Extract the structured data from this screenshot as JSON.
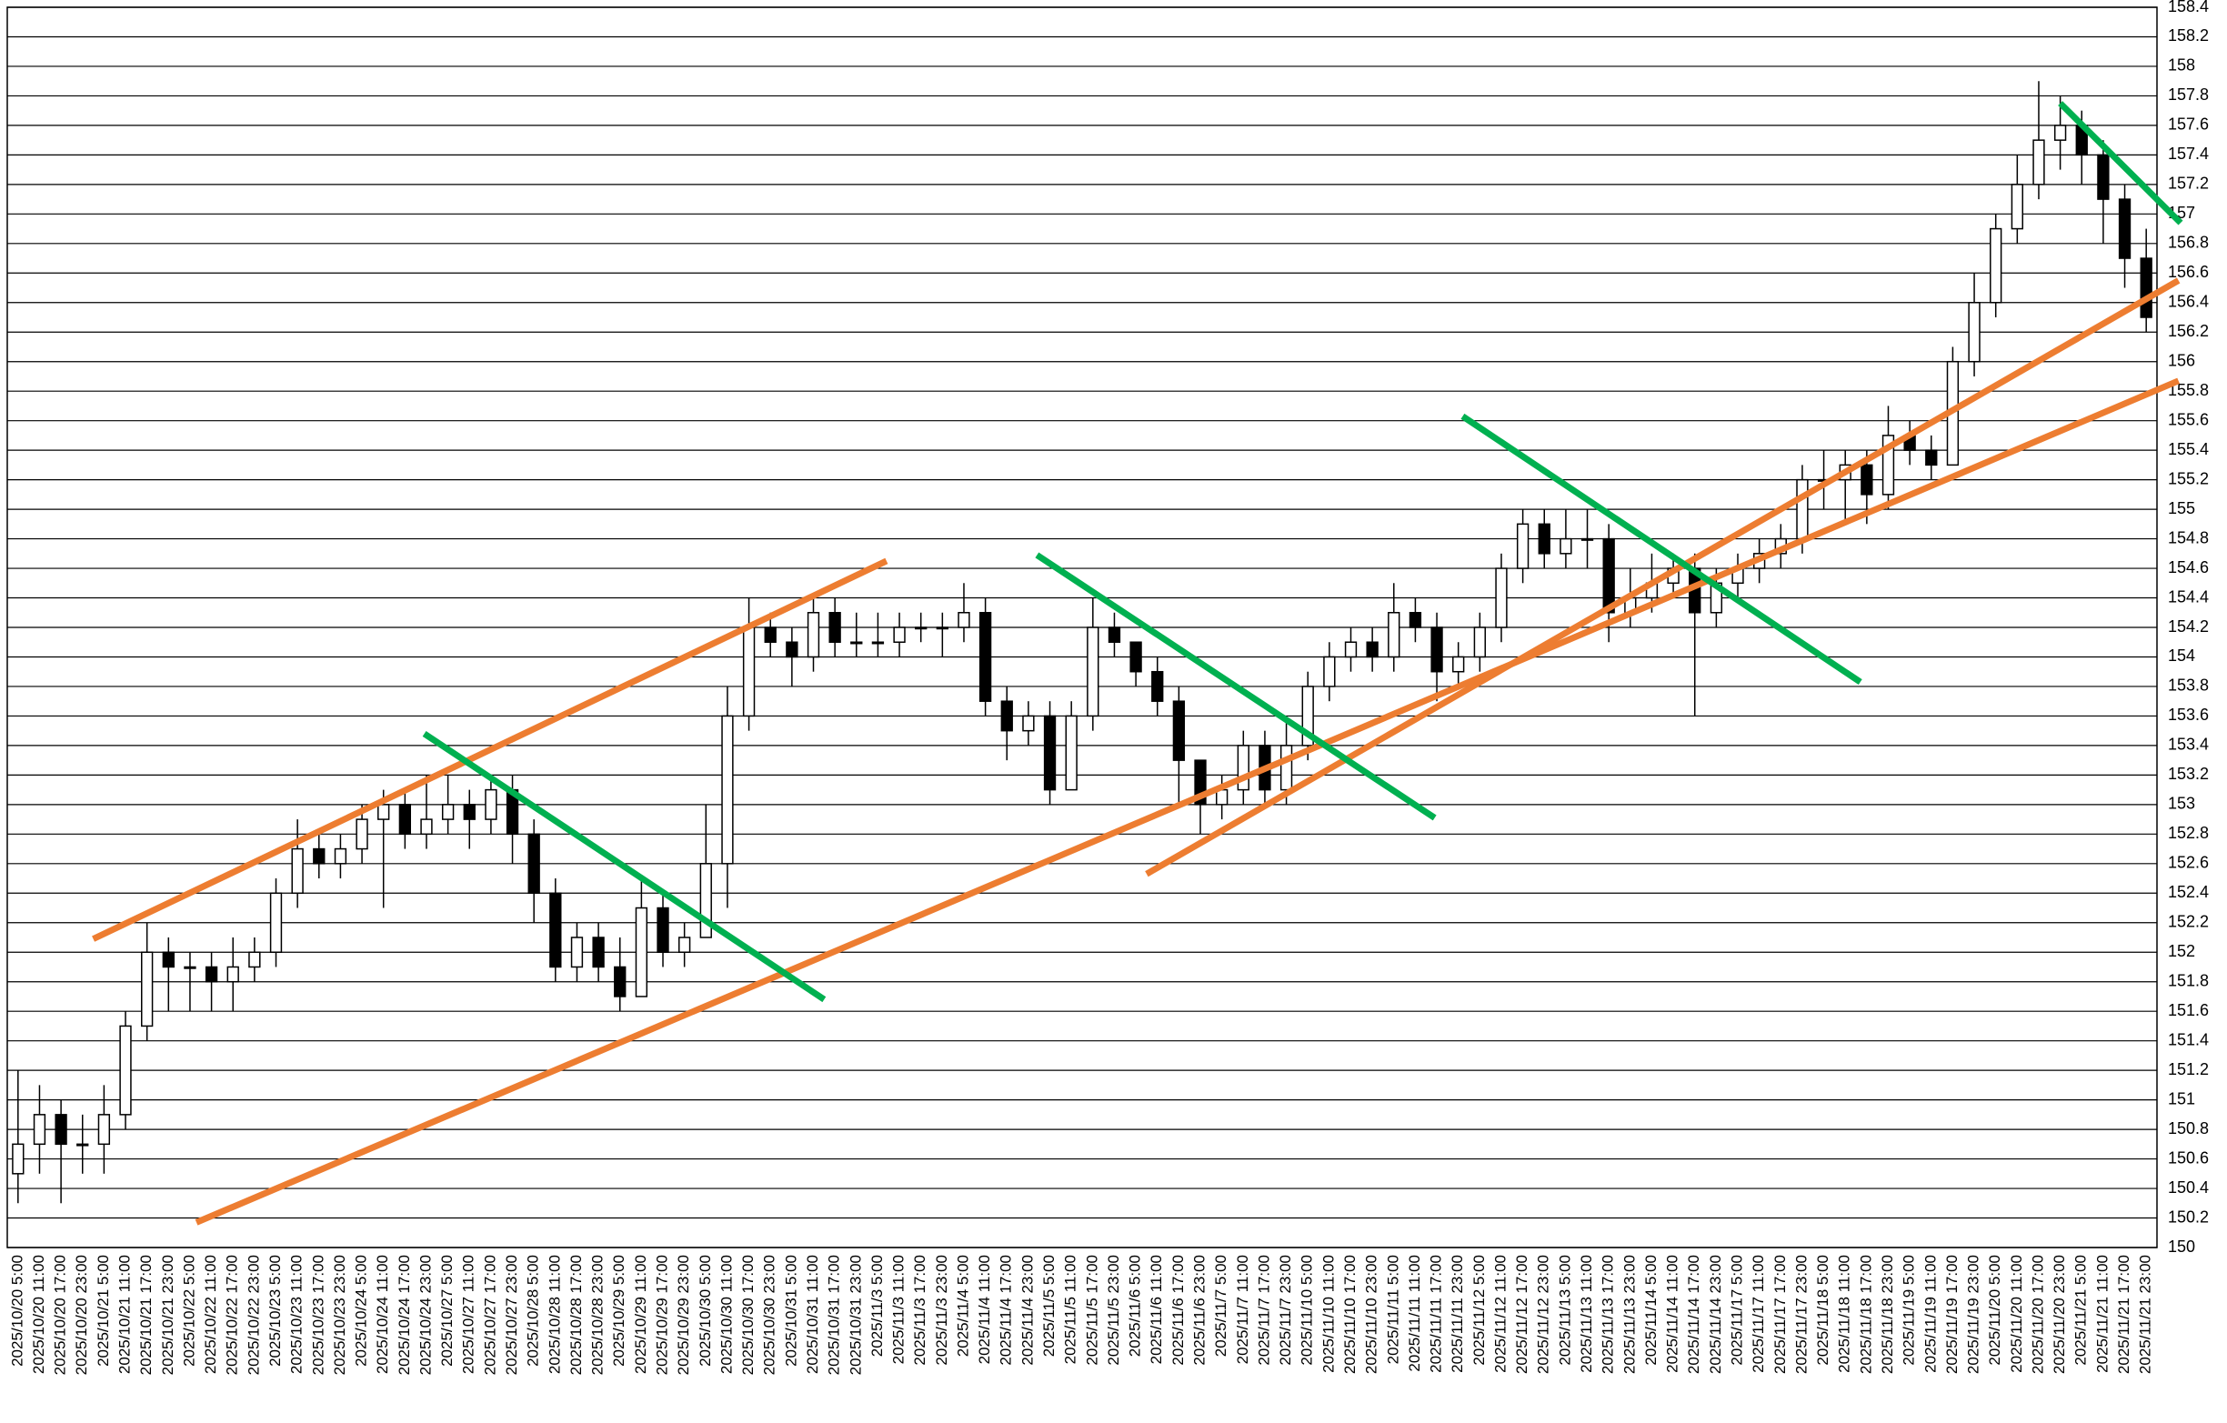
{
  "chart_data": {
    "type": "candlestick",
    "categories": [
      "2025/10/20 5:00",
      "2025/10/20 11:00",
      "2025/10/20 17:00",
      "2025/10/20 23:00",
      "2025/10/21 5:00",
      "2025/10/21 11:00",
      "2025/10/21 17:00",
      "2025/10/21 23:00",
      "2025/10/22 5:00",
      "2025/10/22 11:00",
      "2025/10/22 17:00",
      "2025/10/22 23:00",
      "2025/10/23 5:00",
      "2025/10/23 11:00",
      "2025/10/23 17:00",
      "2025/10/23 23:00",
      "2025/10/24 5:00",
      "2025/10/24 11:00",
      "2025/10/24 17:00",
      "2025/10/24 23:00",
      "2025/10/27 5:00",
      "2025/10/27 11:00",
      "2025/10/27 17:00",
      "2025/10/27 23:00",
      "2025/10/28 5:00",
      "2025/10/28 11:00",
      "2025/10/28 17:00",
      "2025/10/28 23:00",
      "2025/10/29 5:00",
      "2025/10/29 11:00",
      "2025/10/29 17:00",
      "2025/10/29 23:00",
      "2025/10/30 5:00",
      "2025/10/30 11:00",
      "2025/10/30 17:00",
      "2025/10/30 23:00",
      "2025/10/31 5:00",
      "2025/10/31 11:00",
      "2025/10/31 17:00",
      "2025/10/31 23:00",
      "2025/11/3 5:00",
      "2025/11/3 11:00",
      "2025/11/3 17:00",
      "2025/11/3 23:00",
      "2025/11/4 5:00",
      "2025/11/4 11:00",
      "2025/11/4 17:00",
      "2025/11/4 23:00",
      "2025/11/5 5:00",
      "2025/11/5 11:00",
      "2025/11/5 17:00",
      "2025/11/5 23:00",
      "2025/11/6 5:00",
      "2025/11/6 11:00",
      "2025/11/6 17:00",
      "2025/11/6 23:00",
      "2025/11/7 5:00",
      "2025/11/7 11:00",
      "2025/11/7 17:00",
      "2025/11/7 23:00",
      "2025/11/10 5:00",
      "2025/11/10 11:00",
      "2025/11/10 17:00",
      "2025/11/10 23:00",
      "2025/11/11 5:00",
      "2025/11/11 11:00",
      "2025/11/11 17:00",
      "2025/11/11 23:00",
      "2025/11/12 5:00",
      "2025/11/12 11:00",
      "2025/11/12 17:00",
      "2025/11/12 23:00",
      "2025/11/13 5:00",
      "2025/11/13 11:00",
      "2025/11/13 17:00",
      "2025/11/13 23:00",
      "2025/11/14 5:00",
      "2025/11/14 11:00",
      "2025/11/14 17:00",
      "2025/11/14 23:00",
      "2025/11/17 5:00",
      "2025/11/17 11:00",
      "2025/11/17 17:00",
      "2025/11/17 23:00",
      "2025/11/18 5:00",
      "2025/11/18 11:00",
      "2025/11/18 17:00",
      "2025/11/18 23:00",
      "2025/11/19 5:00",
      "2025/11/19 11:00",
      "2025/11/19 17:00",
      "2025/11/19 23:00",
      "2025/11/20 5:00",
      "2025/11/20 11:00",
      "2025/11/20 17:00",
      "2025/11/20 23:00",
      "2025/11/21 5:00",
      "2025/11/21 11:00",
      "2025/11/21 17:00",
      "2025/11/21 23:00"
    ],
    "open": [
      150.5,
      150.7,
      150.9,
      150.7,
      150.7,
      150.9,
      151.5,
      152.0,
      151.9,
      151.9,
      151.8,
      151.9,
      152.0,
      152.4,
      152.7,
      152.6,
      152.7,
      152.9,
      153.0,
      152.8,
      152.9,
      153.0,
      152.9,
      153.1,
      152.8,
      152.4,
      151.9,
      152.1,
      151.9,
      151.7,
      152.3,
      152.0,
      152.1,
      152.6,
      153.6,
      154.2,
      154.1,
      154.0,
      154.3,
      154.1,
      154.1,
      154.1,
      154.2,
      154.2,
      154.2,
      154.3,
      153.7,
      153.5,
      153.6,
      153.1,
      153.6,
      154.2,
      154.1,
      153.9,
      153.7,
      153.3,
      153.0,
      153.1,
      153.4,
      153.1,
      153.4,
      153.8,
      154.0,
      154.1,
      154.0,
      154.3,
      154.2,
      153.9,
      154.0,
      154.2,
      154.6,
      154.9,
      154.7,
      154.8,
      154.8,
      154.3,
      154.4,
      154.5,
      154.6,
      154.3,
      154.5,
      154.6,
      154.7,
      154.8,
      155.2,
      155.2,
      155.3,
      155.1,
      155.5,
      155.4,
      155.3,
      156.0,
      156.4,
      156.9,
      157.2,
      157.5,
      157.6,
      157.4,
      157.1,
      156.7
    ],
    "high": [
      151.2,
      151.1,
      151.0,
      150.9,
      151.1,
      151.6,
      152.2,
      152.1,
      152.0,
      152.0,
      152.1,
      152.1,
      152.5,
      152.9,
      152.8,
      152.8,
      153.0,
      153.1,
      153.1,
      153.2,
      153.2,
      153.1,
      153.2,
      153.2,
      152.9,
      152.5,
      152.2,
      152.2,
      152.1,
      152.5,
      152.4,
      152.2,
      153.0,
      153.8,
      154.4,
      154.3,
      154.2,
      154.4,
      154.4,
      154.3,
      154.3,
      154.3,
      154.3,
      154.3,
      154.5,
      154.4,
      153.8,
      153.7,
      153.7,
      153.7,
      154.4,
      154.3,
      154.1,
      154.0,
      153.8,
      153.3,
      153.2,
      153.5,
      153.5,
      153.6,
      153.9,
      154.1,
      154.2,
      154.2,
      154.5,
      154.4,
      154.3,
      154.1,
      154.3,
      154.7,
      155.0,
      155.0,
      155.0,
      155.0,
      154.9,
      154.6,
      154.7,
      154.7,
      154.7,
      154.6,
      154.7,
      154.8,
      154.9,
      155.3,
      155.4,
      155.4,
      155.4,
      155.7,
      155.6,
      155.5,
      156.1,
      156.6,
      157.0,
      157.4,
      157.9,
      157.8,
      157.7,
      157.5,
      157.2,
      156.9
    ],
    "low": [
      150.3,
      150.5,
      150.3,
      150.5,
      150.5,
      150.8,
      151.4,
      151.6,
      151.6,
      151.6,
      151.6,
      151.8,
      151.9,
      152.3,
      152.5,
      152.5,
      152.6,
      152.3,
      152.7,
      152.7,
      152.8,
      152.7,
      152.8,
      152.6,
      152.2,
      151.8,
      151.8,
      151.8,
      151.6,
      151.7,
      151.9,
      151.9,
      152.1,
      152.3,
      153.5,
      154.0,
      153.8,
      153.9,
      154.0,
      154.0,
      154.0,
      154.0,
      154.1,
      154.0,
      154.1,
      153.6,
      153.3,
      153.4,
      153.0,
      153.1,
      153.5,
      154.0,
      153.8,
      153.6,
      153.0,
      152.8,
      152.9,
      153.0,
      153.0,
      153.0,
      153.3,
      153.7,
      153.9,
      153.9,
      153.9,
      154.1,
      153.7,
      153.8,
      153.9,
      154.1,
      154.5,
      154.6,
      154.6,
      154.6,
      154.1,
      154.2,
      154.3,
      154.4,
      153.6,
      154.2,
      154.4,
      154.5,
      154.6,
      154.7,
      155.0,
      154.9,
      154.9,
      155.0,
      155.3,
      155.2,
      155.3,
      155.9,
      156.3,
      156.8,
      157.1,
      157.3,
      157.2,
      156.8,
      156.5,
      156.2
    ],
    "close": [
      150.7,
      150.9,
      150.7,
      150.7,
      150.9,
      151.5,
      152.0,
      151.9,
      151.9,
      151.8,
      151.9,
      152.0,
      152.4,
      152.7,
      152.6,
      152.7,
      152.9,
      153.0,
      152.8,
      152.9,
      153.0,
      152.9,
      153.1,
      152.8,
      152.4,
      151.9,
      152.1,
      151.9,
      151.7,
      152.3,
      152.0,
      152.1,
      152.6,
      153.6,
      154.2,
      154.1,
      154.0,
      154.3,
      154.1,
      154.1,
      154.1,
      154.2,
      154.2,
      154.2,
      154.3,
      153.7,
      153.5,
      153.6,
      153.1,
      153.6,
      154.2,
      154.1,
      153.9,
      153.7,
      153.3,
      153.0,
      153.1,
      153.4,
      153.1,
      153.4,
      153.8,
      154.0,
      154.1,
      154.0,
      154.3,
      154.2,
      153.9,
      154.0,
      154.2,
      154.6,
      154.9,
      154.7,
      154.8,
      154.8,
      154.3,
      154.4,
      154.5,
      154.6,
      154.3,
      154.5,
      154.6,
      154.7,
      154.8,
      155.2,
      155.2,
      155.3,
      155.1,
      155.5,
      155.4,
      155.3,
      156.0,
      156.4,
      156.9,
      157.2,
      157.5,
      157.6,
      157.4,
      157.1,
      156.7,
      156.3
    ],
    "up_color": "#ffffff",
    "down_color": "#000000",
    "wick_color": "#000000",
    "ylim": [
      150,
      158.4
    ],
    "yticks": [
      150,
      150.2,
      150.4,
      150.6,
      150.8,
      151,
      151.2,
      151.4,
      151.6,
      151.8,
      152,
      152.2,
      152.4,
      152.6,
      152.8,
      153,
      153.2,
      153.4,
      153.6,
      153.8,
      154,
      154.2,
      154.4,
      154.6,
      154.8,
      155,
      155.2,
      155.4,
      155.6,
      155.8,
      156,
      156.2,
      156.4,
      156.6,
      156.8,
      157,
      157.2,
      157.4,
      157.6,
      157.8,
      158,
      158.2,
      158.4
    ],
    "grid": true,
    "y_axis_side": "right",
    "trendlines": [
      {
        "color": "#ed7d31",
        "x": [
          3.5,
          40.4
        ],
        "y": [
          152.09,
          154.65
        ]
      },
      {
        "color": "#ed7d31",
        "x": [
          8.3,
          100.5
        ],
        "y": [
          150.17,
          155.87
        ]
      },
      {
        "color": "#ed7d31",
        "x": [
          52.5,
          100.5
        ],
        "y": [
          152.53,
          156.55
        ]
      },
      {
        "color": "#00b050",
        "x": [
          18.9,
          37.5
        ],
        "y": [
          153.48,
          151.68
        ]
      },
      {
        "color": "#00b050",
        "x": [
          47.4,
          65.9
        ],
        "y": [
          154.69,
          152.91
        ]
      },
      {
        "color": "#00b050",
        "x": [
          67.2,
          85.7
        ],
        "y": [
          155.63,
          153.83
        ]
      },
      {
        "color": "#00b050",
        "x": [
          95.0,
          100.6
        ],
        "y": [
          157.75,
          156.94
        ]
      }
    ]
  }
}
